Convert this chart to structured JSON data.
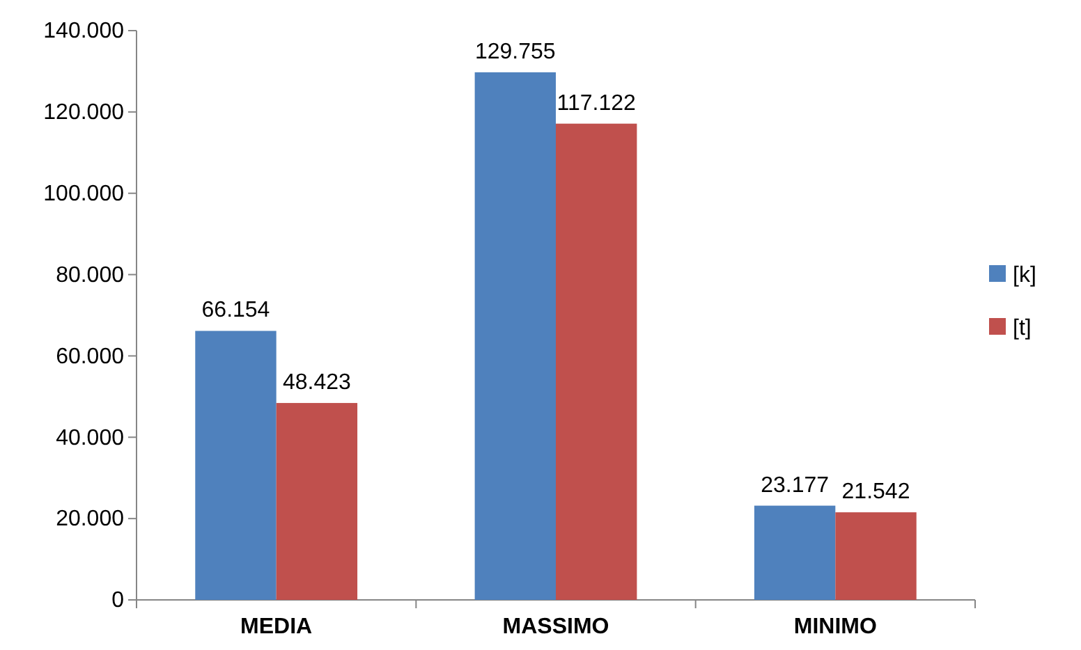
{
  "chart_data": {
    "type": "bar",
    "categories": [
      "MEDIA",
      "MASSIMO",
      "MINIMO"
    ],
    "series": [
      {
        "name": "[k]",
        "color": "#4f81bd",
        "values": [
          66154,
          129755,
          23177
        ],
        "value_labels": [
          "66.154",
          "129.755",
          "23.177"
        ]
      },
      {
        "name": "[t]",
        "color": "#c0504d",
        "values": [
          48423,
          117122,
          21542
        ],
        "value_labels": [
          "48.423",
          "117.122",
          "21.542"
        ]
      }
    ],
    "ylim": [
      0,
      140000
    ],
    "yticks": [
      0,
      {
        "value": 20000,
        "label": "20.000"
      },
      {
        "value": 40000,
        "label": "40.000"
      },
      {
        "value": 60000,
        "label": "60.000"
      },
      {
        "value": 80000,
        "label": "80.000"
      },
      {
        "value": 100000,
        "label": "100.000"
      },
      {
        "value": 120000,
        "label": "120.000"
      },
      {
        "value": 140000,
        "label": "140.000"
      }
    ],
    "grid": false,
    "legend": "right"
  }
}
